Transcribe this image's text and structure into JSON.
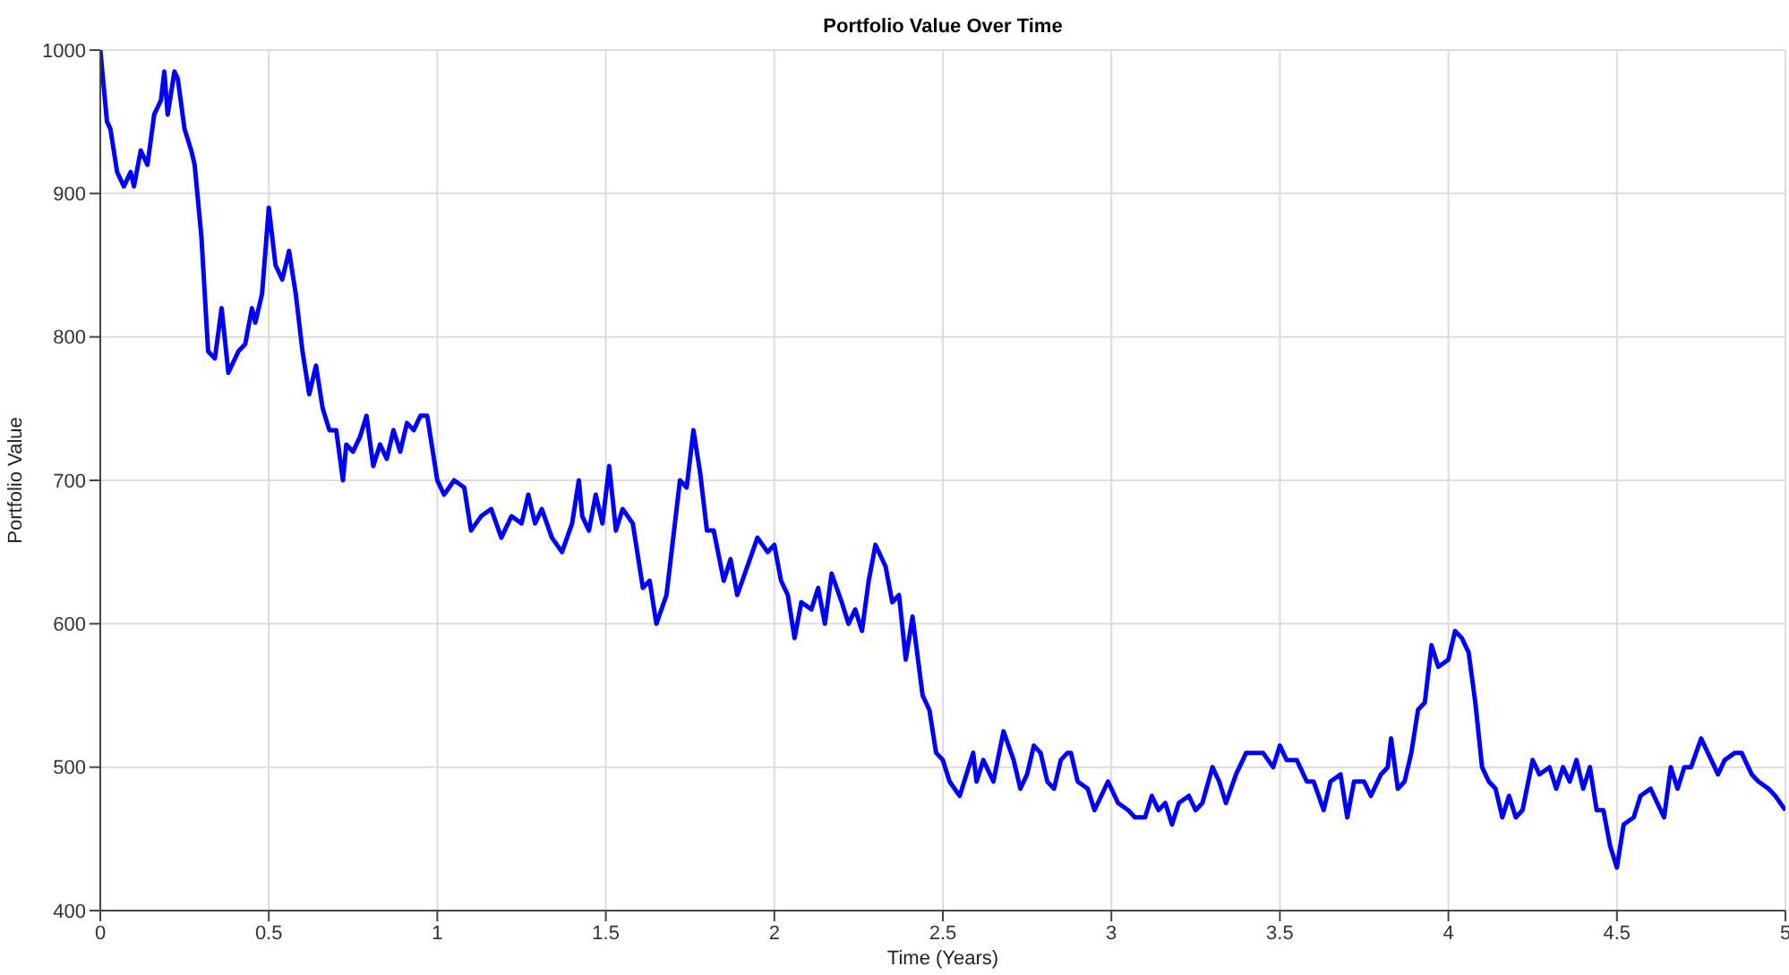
{
  "chart_data": {
    "type": "line",
    "title": "Portfolio Value Over Time",
    "xlabel": "Time (Years)",
    "ylabel": "Portfolio Value",
    "xlim": [
      0,
      5
    ],
    "xticks": [
      0,
      0.5,
      1,
      1.5,
      2,
      2.5,
      3,
      3.5,
      4,
      4.5,
      5
    ],
    "ylim": [
      400,
      1000
    ],
    "yticks": [
      400,
      500,
      600,
      700,
      800,
      900,
      1000
    ],
    "grid": true,
    "marker": "none",
    "line_style": "solid",
    "x": [
      0,
      0.02,
      0.03,
      0.05,
      0.07,
      0.09,
      0.1,
      0.12,
      0.14,
      0.16,
      0.18,
      0.19,
      0.2,
      0.22,
      0.23,
      0.25,
      0.27,
      0.28,
      0.3,
      0.32,
      0.34,
      0.36,
      0.38,
      0.41,
      0.43,
      0.45,
      0.46,
      0.48,
      0.5,
      0.52,
      0.54,
      0.56,
      0.58,
      0.6,
      0.62,
      0.64,
      0.66,
      0.68,
      0.7,
      0.72,
      0.73,
      0.75,
      0.77,
      0.79,
      0.81,
      0.83,
      0.85,
      0.87,
      0.89,
      0.91,
      0.93,
      0.95,
      0.97,
      1.0,
      1.02,
      1.05,
      1.08,
      1.1,
      1.13,
      1.16,
      1.19,
      1.22,
      1.25,
      1.27,
      1.29,
      1.31,
      1.34,
      1.37,
      1.4,
      1.42,
      1.43,
      1.45,
      1.47,
      1.49,
      1.51,
      1.53,
      1.55,
      1.58,
      1.61,
      1.63,
      1.65,
      1.68,
      1.7,
      1.72,
      1.74,
      1.76,
      1.78,
      1.8,
      1.82,
      1.85,
      1.87,
      1.89,
      1.92,
      1.95,
      1.98,
      2.0,
      2.02,
      2.04,
      2.06,
      2.08,
      2.11,
      2.13,
      2.15,
      2.17,
      2.2,
      2.22,
      2.24,
      2.26,
      2.28,
      2.3,
      2.33,
      2.35,
      2.37,
      2.39,
      2.41,
      2.44,
      2.46,
      2.48,
      2.5,
      2.52,
      2.55,
      2.57,
      2.59,
      2.6,
      2.62,
      2.65,
      2.68,
      2.71,
      2.73,
      2.75,
      2.77,
      2.79,
      2.81,
      2.83,
      2.85,
      2.87,
      2.88,
      2.9,
      2.93,
      2.95,
      2.97,
      2.99,
      3.02,
      3.05,
      3.07,
      3.1,
      3.12,
      3.14,
      3.16,
      3.18,
      3.2,
      3.23,
      3.25,
      3.27,
      3.3,
      3.32,
      3.34,
      3.37,
      3.4,
      3.42,
      3.45,
      3.48,
      3.5,
      3.52,
      3.55,
      3.58,
      3.6,
      3.63,
      3.65,
      3.68,
      3.7,
      3.72,
      3.75,
      3.77,
      3.8,
      3.82,
      3.83,
      3.85,
      3.87,
      3.89,
      3.91,
      3.93,
      3.95,
      3.97,
      4.0,
      4.02,
      4.04,
      4.06,
      4.08,
      4.1,
      4.12,
      4.14,
      4.16,
      4.18,
      4.2,
      4.22,
      4.25,
      4.27,
      4.3,
      4.32,
      4.34,
      4.36,
      4.38,
      4.4,
      4.42,
      4.44,
      4.46,
      4.48,
      4.5,
      4.52,
      4.55,
      4.57,
      4.6,
      4.62,
      4.64,
      4.66,
      4.68,
      4.7,
      4.72,
      4.75,
      4.77,
      4.8,
      4.82,
      4.85,
      4.87,
      4.9,
      4.92,
      4.95,
      4.97,
      5.0
    ],
    "series": [
      {
        "color": "#0000ff",
        "values": [
          1000,
          950,
          945,
          915,
          905,
          915,
          905,
          930,
          920,
          955,
          965,
          985,
          955,
          985,
          980,
          945,
          930,
          920,
          870,
          790,
          785,
          820,
          775,
          790,
          795,
          820,
          810,
          830,
          890,
          850,
          840,
          860,
          830,
          790,
          760,
          780,
          750,
          735,
          735,
          700,
          725,
          720,
          730,
          745,
          710,
          725,
          715,
          735,
          720,
          740,
          735,
          745,
          745,
          700,
          690,
          700,
          695,
          665,
          675,
          680,
          660,
          675,
          670,
          690,
          670,
          680,
          660,
          650,
          670,
          700,
          675,
          665,
          690,
          670,
          710,
          665,
          680,
          670,
          625,
          630,
          600,
          620,
          660,
          700,
          695,
          735,
          705,
          665,
          665,
          630,
          645,
          620,
          640,
          660,
          650,
          655,
          630,
          620,
          590,
          615,
          610,
          625,
          600,
          635,
          615,
          600,
          610,
          595,
          630,
          655,
          640,
          615,
          620,
          575,
          605,
          550,
          540,
          510,
          505,
          490,
          480,
          495,
          510,
          490,
          505,
          490,
          525,
          505,
          485,
          495,
          515,
          510,
          490,
          485,
          505,
          510,
          510,
          490,
          485,
          470,
          480,
          490,
          475,
          470,
          465,
          465,
          480,
          470,
          475,
          460,
          475,
          480,
          470,
          475,
          500,
          490,
          475,
          495,
          510,
          510,
          510,
          500,
          515,
          505,
          505,
          490,
          490,
          470,
          490,
          495,
          465,
          490,
          490,
          480,
          495,
          500,
          520,
          485,
          490,
          510,
          540,
          545,
          585,
          570,
          575,
          595,
          590,
          580,
          545,
          500,
          490,
          485,
          465,
          480,
          465,
          470,
          505,
          495,
          500,
          485,
          500,
          490,
          505,
          485,
          500,
          470,
          470,
          445,
          430,
          460,
          465,
          480,
          485,
          475,
          465,
          500,
          485,
          500,
          500,
          520,
          510,
          495,
          505,
          510,
          510,
          495,
          490,
          485,
          480,
          470
        ]
      }
    ]
  }
}
